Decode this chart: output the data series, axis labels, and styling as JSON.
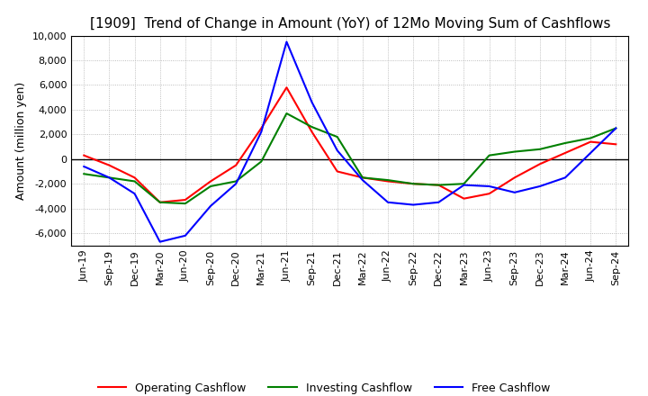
{
  "title": "[1909]  Trend of Change in Amount (YoY) of 12Mo Moving Sum of Cashflows",
  "ylabel": "Amount (million yen)",
  "ylim": [
    -7000,
    10000
  ],
  "yticks": [
    -6000,
    -4000,
    -2000,
    0,
    2000,
    4000,
    6000,
    8000,
    10000
  ],
  "dates": [
    "Jun-19",
    "Sep-19",
    "Dec-19",
    "Mar-20",
    "Jun-20",
    "Sep-20",
    "Dec-20",
    "Mar-21",
    "Jun-21",
    "Sep-21",
    "Dec-21",
    "Mar-22",
    "Jun-22",
    "Sep-22",
    "Dec-22",
    "Mar-23",
    "Jun-23",
    "Sep-23",
    "Dec-23",
    "Mar-24",
    "Jun-24",
    "Sep-24"
  ],
  "operating": [
    300,
    -500,
    -1500,
    -3500,
    -3300,
    -1800,
    -500,
    2500,
    5800,
    2200,
    -1000,
    -1500,
    -1800,
    -2000,
    -2100,
    -3200,
    -2800,
    -1500,
    -400,
    500,
    1400,
    1200
  ],
  "investing": [
    -1200,
    -1500,
    -1800,
    -3500,
    -3600,
    -2200,
    -1800,
    -200,
    3700,
    2600,
    1800,
    -1500,
    -1700,
    -2000,
    -2100,
    -2000,
    300,
    600,
    800,
    1300,
    1700,
    2500
  ],
  "free": [
    -600,
    -1500,
    -2800,
    -6700,
    -6200,
    -3800,
    -2000,
    2200,
    9500,
    4600,
    700,
    -1700,
    -3500,
    -3700,
    -3500,
    -2100,
    -2200,
    -2700,
    -2200,
    -1500,
    500,
    2500
  ],
  "operating_color": "#FF0000",
  "investing_color": "#008000",
  "free_color": "#0000FF",
  "background_color": "#FFFFFF",
  "grid_color": "#AAAAAA",
  "title_fontsize": 11,
  "label_fontsize": 9,
  "tick_fontsize": 8
}
